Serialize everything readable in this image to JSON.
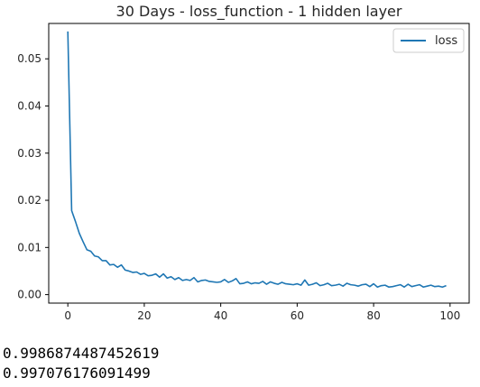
{
  "chart_data": {
    "type": "line",
    "title": "30 Days - loss_function - 1 hidden layer",
    "xlabel": "",
    "ylabel": "",
    "xlim": [
      -5,
      105
    ],
    "ylim": [
      -0.0018,
      0.0575
    ],
    "xticks": [
      0,
      20,
      40,
      60,
      80,
      100
    ],
    "xtick_labels": [
      "0",
      "20",
      "40",
      "60",
      "80",
      "100"
    ],
    "yticks": [
      0.0,
      0.01,
      0.02,
      0.03,
      0.04,
      0.05
    ],
    "ytick_labels": [
      "0.00",
      "0.01",
      "0.02",
      "0.03",
      "0.04",
      "0.05"
    ],
    "grid": false,
    "legend_position": "top-right",
    "series": [
      {
        "name": "loss",
        "color": "#1f77b4",
        "x": [
          0,
          1,
          2,
          3,
          4,
          5,
          6,
          7,
          8,
          9,
          10,
          11,
          12,
          13,
          14,
          15,
          16,
          17,
          18,
          19,
          20,
          21,
          22,
          23,
          24,
          25,
          26,
          27,
          28,
          29,
          30,
          31,
          32,
          33,
          34,
          35,
          36,
          37,
          38,
          39,
          40,
          41,
          42,
          43,
          44,
          45,
          46,
          47,
          48,
          49,
          50,
          51,
          52,
          53,
          54,
          55,
          56,
          57,
          58,
          59,
          60,
          61,
          62,
          63,
          64,
          65,
          66,
          67,
          68,
          69,
          70,
          71,
          72,
          73,
          74,
          75,
          76,
          77,
          78,
          79,
          80,
          81,
          82,
          83,
          84,
          85,
          86,
          87,
          88,
          89,
          90,
          91,
          92,
          93,
          94,
          95,
          96,
          97,
          98,
          99
        ],
        "values": [
          0.0558,
          0.0178,
          0.0155,
          0.013,
          0.0112,
          0.0095,
          0.0092,
          0.0082,
          0.008,
          0.0072,
          0.0072,
          0.0063,
          0.0064,
          0.0058,
          0.0063,
          0.0052,
          0.005,
          0.0047,
          0.0048,
          0.0043,
          0.0045,
          0.004,
          0.0041,
          0.0044,
          0.0037,
          0.0044,
          0.0035,
          0.0038,
          0.0032,
          0.0036,
          0.003,
          0.0032,
          0.003,
          0.0036,
          0.0027,
          0.003,
          0.0031,
          0.0028,
          0.0027,
          0.0026,
          0.0027,
          0.0032,
          0.0026,
          0.0029,
          0.0034,
          0.0023,
          0.0024,
          0.0027,
          0.0023,
          0.0025,
          0.0024,
          0.0028,
          0.0022,
          0.0027,
          0.0024,
          0.0022,
          0.0026,
          0.0023,
          0.0022,
          0.0021,
          0.0023,
          0.002,
          0.0031,
          0.002,
          0.0022,
          0.0025,
          0.0019,
          0.0021,
          0.0024,
          0.0019,
          0.002,
          0.0022,
          0.0018,
          0.0024,
          0.0021,
          0.002,
          0.0018,
          0.0021,
          0.0022,
          0.0017,
          0.0023,
          0.0016,
          0.0019,
          0.002,
          0.0016,
          0.0017,
          0.0019,
          0.0021,
          0.0016,
          0.0022,
          0.0017,
          0.0019,
          0.0021,
          0.0016,
          0.0018,
          0.002,
          0.0017,
          0.0018,
          0.0016,
          0.0019
        ]
      }
    ]
  },
  "output": {
    "lines": [
      "0.9986874487452619",
      "0.997076176091499"
    ]
  }
}
